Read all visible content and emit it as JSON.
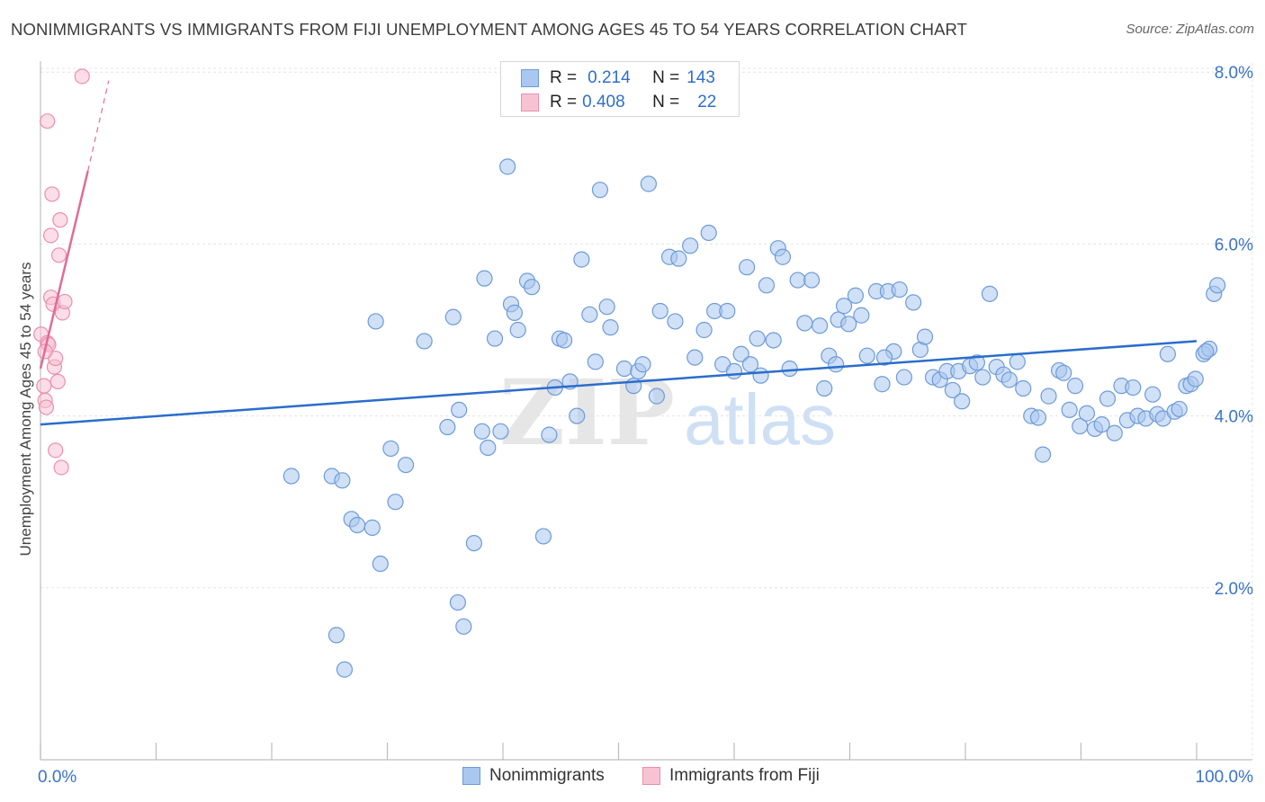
{
  "header": {
    "title": "NONIMMIGRANTS VS IMMIGRANTS FROM FIJI UNEMPLOYMENT AMONG AGES 45 TO 54 YEARS CORRELATION CHART",
    "source": "Source: ZipAtlas.com"
  },
  "stats": {
    "row1": {
      "r_label": "R =",
      "r_value": "0.214",
      "n_label": "N =",
      "n_value": "143"
    },
    "row2": {
      "r_label": "R =",
      "r_value": "0.408",
      "n_label": "N =",
      "n_value": "22"
    }
  },
  "watermark": {
    "zip": "ZIP",
    "atlas": "atlas"
  },
  "colors": {
    "blue_fill": "#a9c7ef",
    "blue_stroke": "#6d9bd9",
    "blue_line": "#2a6dcc",
    "pink_fill": "#f7c3d3",
    "pink_stroke": "#ea8fac",
    "pink_line": "#e06c97",
    "axis_label": "#3a73c8"
  },
  "chart_data": {
    "type": "scatter",
    "title": "NONIMMIGRANTS VS IMMIGRANTS FROM FIJI UNEMPLOYMENT AMONG AGES 45 TO 54 YEARS CORRELATION CHART",
    "xlabel": "",
    "ylabel": "Unemployment Among Ages 45 to 54 years",
    "xlim": [
      0,
      100
    ],
    "ylim": [
      0,
      8.3
    ],
    "x_tick_labels": [
      "0.0%",
      "100.0%"
    ],
    "y_ticks": [
      2,
      4,
      6,
      8
    ],
    "y_tick_labels": [
      "2.0%",
      "4.0%",
      "6.0%",
      "8.0%"
    ],
    "grid": true,
    "legend": [
      "Nonimmigrants",
      "Immigrants from Fiji"
    ],
    "series": [
      {
        "name": "Nonimmigrants",
        "r": 0.214,
        "n": 143,
        "trend": {
          "x": [
            0,
            100
          ],
          "y": [
            3.9,
            4.87
          ]
        },
        "points": [
          [
            21.7,
            3.3
          ],
          [
            25.2,
            3.3
          ],
          [
            26.1,
            3.25
          ],
          [
            26.9,
            2.8
          ],
          [
            27.4,
            2.73
          ],
          [
            28.7,
            2.7
          ],
          [
            29.4,
            2.28
          ],
          [
            30.3,
            3.62
          ],
          [
            30.7,
            3.0
          ],
          [
            31.6,
            3.43
          ],
          [
            25.6,
            1.45
          ],
          [
            26.3,
            1.05
          ],
          [
            36.1,
            1.83
          ],
          [
            36.6,
            1.55
          ],
          [
            37.5,
            2.52
          ],
          [
            43.5,
            2.6
          ],
          [
            29.0,
            5.1
          ],
          [
            33.2,
            4.87
          ],
          [
            35.2,
            3.87
          ],
          [
            35.7,
            5.15
          ],
          [
            36.2,
            4.07
          ],
          [
            38.2,
            3.82
          ],
          [
            38.7,
            3.63
          ],
          [
            38.4,
            5.6
          ],
          [
            39.3,
            4.9
          ],
          [
            39.8,
            3.82
          ],
          [
            40.7,
            5.3
          ],
          [
            41.0,
            5.2
          ],
          [
            41.3,
            5.0
          ],
          [
            42.1,
            5.57
          ],
          [
            40.4,
            6.9
          ],
          [
            42.5,
            5.5
          ],
          [
            44.0,
            3.78
          ],
          [
            44.5,
            4.33
          ],
          [
            44.9,
            4.9
          ],
          [
            45.3,
            4.88
          ],
          [
            45.8,
            4.4
          ],
          [
            46.4,
            4.0
          ],
          [
            46.8,
            5.82
          ],
          [
            47.5,
            5.18
          ],
          [
            48.0,
            4.63
          ],
          [
            48.4,
            6.63
          ],
          [
            49.0,
            5.27
          ],
          [
            49.3,
            5.03
          ],
          [
            50.5,
            4.55
          ],
          [
            51.3,
            4.35
          ],
          [
            51.7,
            4.52
          ],
          [
            52.1,
            4.6
          ],
          [
            52.6,
            6.7
          ],
          [
            53.3,
            4.23
          ],
          [
            53.6,
            5.22
          ],
          [
            54.4,
            5.85
          ],
          [
            54.9,
            5.1
          ],
          [
            55.2,
            5.83
          ],
          [
            56.2,
            5.98
          ],
          [
            56.6,
            4.68
          ],
          [
            57.4,
            5.0
          ],
          [
            57.8,
            6.13
          ],
          [
            58.3,
            5.22
          ],
          [
            59.0,
            4.6
          ],
          [
            59.4,
            5.22
          ],
          [
            60.0,
            4.52
          ],
          [
            60.6,
            4.72
          ],
          [
            61.1,
            5.73
          ],
          [
            61.4,
            4.6
          ],
          [
            62.0,
            4.9
          ],
          [
            62.3,
            4.47
          ],
          [
            62.8,
            5.52
          ],
          [
            63.4,
            4.88
          ],
          [
            63.8,
            5.95
          ],
          [
            64.2,
            5.85
          ],
          [
            64.8,
            4.55
          ],
          [
            65.5,
            5.58
          ],
          [
            66.1,
            5.08
          ],
          [
            66.7,
            5.58
          ],
          [
            67.4,
            5.05
          ],
          [
            67.8,
            4.32
          ],
          [
            68.2,
            4.7
          ],
          [
            69.0,
            5.12
          ],
          [
            69.5,
            5.28
          ],
          [
            69.9,
            5.07
          ],
          [
            70.5,
            5.4
          ],
          [
            71.0,
            5.17
          ],
          [
            71.5,
            4.7
          ],
          [
            72.3,
            5.45
          ],
          [
            72.8,
            4.37
          ],
          [
            73.3,
            5.45
          ],
          [
            73.8,
            4.75
          ],
          [
            74.3,
            5.47
          ],
          [
            74.7,
            4.45
          ],
          [
            75.5,
            5.32
          ],
          [
            76.1,
            4.77
          ],
          [
            76.5,
            4.92
          ],
          [
            77.2,
            4.45
          ],
          [
            77.8,
            4.42
          ],
          [
            78.4,
            4.52
          ],
          [
            78.9,
            4.3
          ],
          [
            79.4,
            4.52
          ],
          [
            79.7,
            4.17
          ],
          [
            80.4,
            4.58
          ],
          [
            81.0,
            4.62
          ],
          [
            81.5,
            4.45
          ],
          [
            82.1,
            5.42
          ],
          [
            82.7,
            4.57
          ],
          [
            83.3,
            4.48
          ],
          [
            83.8,
            4.42
          ],
          [
            84.5,
            4.63
          ],
          [
            85.0,
            4.32
          ],
          [
            85.7,
            4.0
          ],
          [
            86.3,
            3.98
          ],
          [
            86.7,
            3.55
          ],
          [
            87.2,
            4.23
          ],
          [
            88.1,
            4.53
          ],
          [
            88.5,
            4.5
          ],
          [
            89.0,
            4.07
          ],
          [
            89.5,
            4.35
          ],
          [
            89.9,
            3.88
          ],
          [
            90.5,
            4.03
          ],
          [
            91.2,
            3.85
          ],
          [
            91.8,
            3.9
          ],
          [
            92.3,
            4.2
          ],
          [
            92.9,
            3.8
          ],
          [
            93.5,
            4.35
          ],
          [
            94.0,
            3.95
          ],
          [
            94.5,
            4.33
          ],
          [
            94.9,
            4.0
          ],
          [
            95.6,
            3.97
          ],
          [
            96.2,
            4.25
          ],
          [
            96.6,
            4.02
          ],
          [
            97.1,
            3.97
          ],
          [
            97.5,
            4.72
          ],
          [
            98.1,
            4.05
          ],
          [
            98.5,
            4.08
          ],
          [
            99.1,
            4.35
          ],
          [
            99.5,
            4.37
          ],
          [
            99.9,
            4.43
          ],
          [
            100.6,
            4.72
          ],
          [
            101.1,
            4.78
          ],
          [
            101.5,
            5.42
          ],
          [
            101.8,
            5.52
          ],
          [
            100.8,
            4.75
          ],
          [
            73.0,
            4.68
          ],
          [
            68.8,
            4.6
          ]
        ]
      },
      {
        "name": "Immigrants from Fiji",
        "r": 0.408,
        "n": 22,
        "trend": {
          "x": [
            0,
            4.1
          ],
          "y": [
            4.55,
            6.85
          ]
        },
        "trend_dashed": {
          "x": [
            4.1,
            5.9
          ],
          "y": [
            6.85,
            7.9
          ]
        },
        "points": [
          [
            0.05,
            4.95
          ],
          [
            0.3,
            4.35
          ],
          [
            0.4,
            4.18
          ],
          [
            0.5,
            4.1
          ],
          [
            0.6,
            4.85
          ],
          [
            0.7,
            4.83
          ],
          [
            0.9,
            5.38
          ],
          [
            1.1,
            5.3
          ],
          [
            1.0,
            6.58
          ],
          [
            0.9,
            6.1
          ],
          [
            1.2,
            4.57
          ],
          [
            1.3,
            4.67
          ],
          [
            1.5,
            4.4
          ],
          [
            1.6,
            5.87
          ],
          [
            1.7,
            6.28
          ],
          [
            1.9,
            5.2
          ],
          [
            2.1,
            5.33
          ],
          [
            1.3,
            3.6
          ],
          [
            1.8,
            3.4
          ],
          [
            0.6,
            7.43
          ],
          [
            3.6,
            7.95
          ],
          [
            0.4,
            4.75
          ]
        ]
      }
    ]
  },
  "legend_bottom": {
    "item1": "Nonimmigrants",
    "item2": "Immigrants from Fiji"
  }
}
